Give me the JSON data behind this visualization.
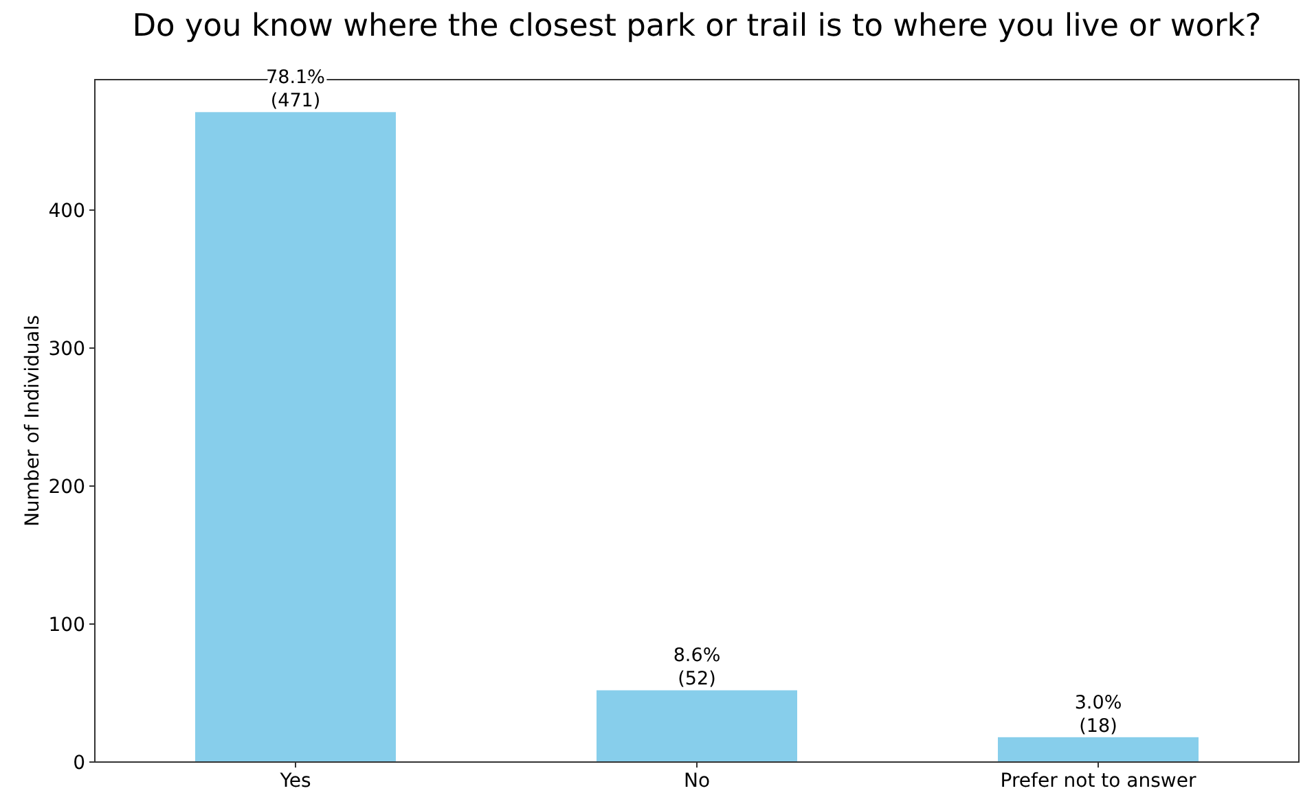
{
  "chart_data": {
    "type": "bar",
    "title": "Do you know where the closest park or trail is to where you live or work?",
    "ylabel": "Number of Individuals",
    "categories": [
      "Yes",
      "No",
      "Prefer not to answer"
    ],
    "values": [
      471,
      52,
      18
    ],
    "color": "#87ceeb",
    "value_labels": [
      "78.1%\n(471)",
      "8.6%\n(52)",
      "3.0%\n(18)"
    ],
    "ylim": [
      0,
      494.55
    ],
    "yticks": [
      0,
      100,
      200,
      300,
      400
    ],
    "grid": false
  }
}
